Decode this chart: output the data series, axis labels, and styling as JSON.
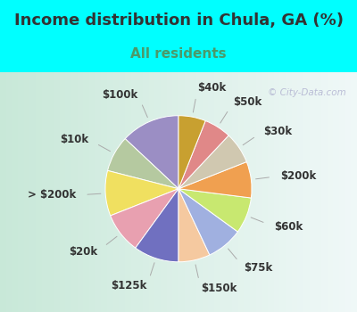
{
  "title": "Income distribution in Chula, GA (%)",
  "subtitle": "All residents",
  "watermark": "© City-Data.com",
  "background_top": "#00FFFF",
  "title_color": "#333333",
  "title_fontsize": 13,
  "subtitle_fontsize": 11,
  "subtitle_color": "#4a9a6a",
  "labels": [
    "$100k",
    "$10k",
    "> $200k",
    "$20k",
    "$125k",
    "$150k",
    "$75k",
    "$60k",
    "$200k",
    "$30k",
    "$50k",
    "$40k"
  ],
  "values": [
    13,
    8,
    10,
    9,
    10,
    7,
    8,
    8,
    8,
    7,
    6,
    6
  ],
  "colors": [
    "#9b8ec4",
    "#b5c9a0",
    "#f0e060",
    "#e8a0b0",
    "#7070c0",
    "#f5c9a0",
    "#a0b0e0",
    "#c8e870",
    "#f0a050",
    "#d0c8b0",
    "#e08888",
    "#c8a030"
  ],
  "label_fontsize": 8.5,
  "label_color": "#333333",
  "startangle": 90,
  "chart_bg_left": "#c8e8d8",
  "chart_bg_right": "#e8f8f8"
}
